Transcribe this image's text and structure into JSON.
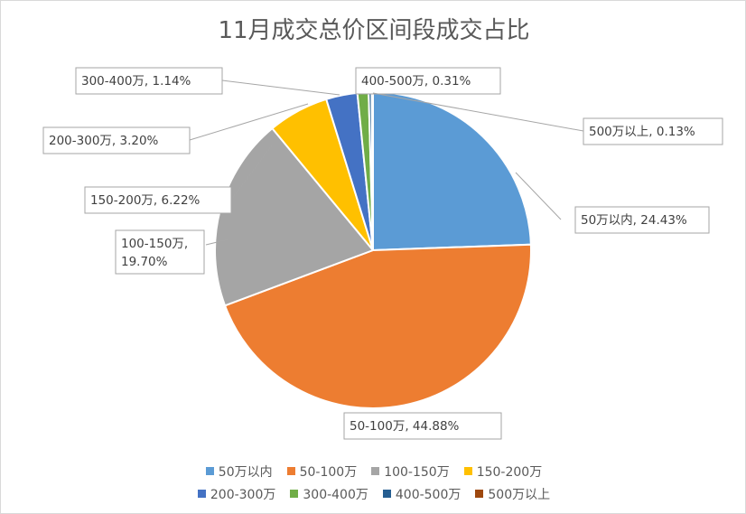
{
  "chart_data": {
    "type": "pie",
    "title": "11月成交总价区间段成交占比",
    "categories": [
      "50万以内",
      "50-100万",
      "100-150万",
      "150-200万",
      "200-300万",
      "300-400万",
      "400-500万",
      "500万以上"
    ],
    "values": [
      24.43,
      44.88,
      19.7,
      6.22,
      3.2,
      1.14,
      0.31,
      0.13
    ],
    "unit": "%",
    "colors": [
      "#5b9bd5",
      "#ed7d31",
      "#a5a5a5",
      "#ffc000",
      "#4472c4",
      "#70ad47",
      "#255e91",
      "#9e480e"
    ],
    "data_labels": [
      [
        "50万以内, 24.43%"
      ],
      [
        "50-100万, 44.88%"
      ],
      [
        "100-150万,",
        "19.70%"
      ],
      [
        "150-200万, 6.22%"
      ],
      [
        "200-300万, 3.20%"
      ],
      [
        "300-400万, 1.14%"
      ],
      [
        "400-500万, 0.31%"
      ],
      [
        "500万以上, 0.13%"
      ]
    ],
    "legend_position": "bottom",
    "legend_rows": [
      [
        "50万以内",
        "50-100万",
        "100-150万",
        "150-200万"
      ],
      [
        "200-300万",
        "300-400万",
        "400-500万",
        "500万以上"
      ]
    ],
    "start_angle_deg": 0,
    "direction": "clockwise"
  }
}
